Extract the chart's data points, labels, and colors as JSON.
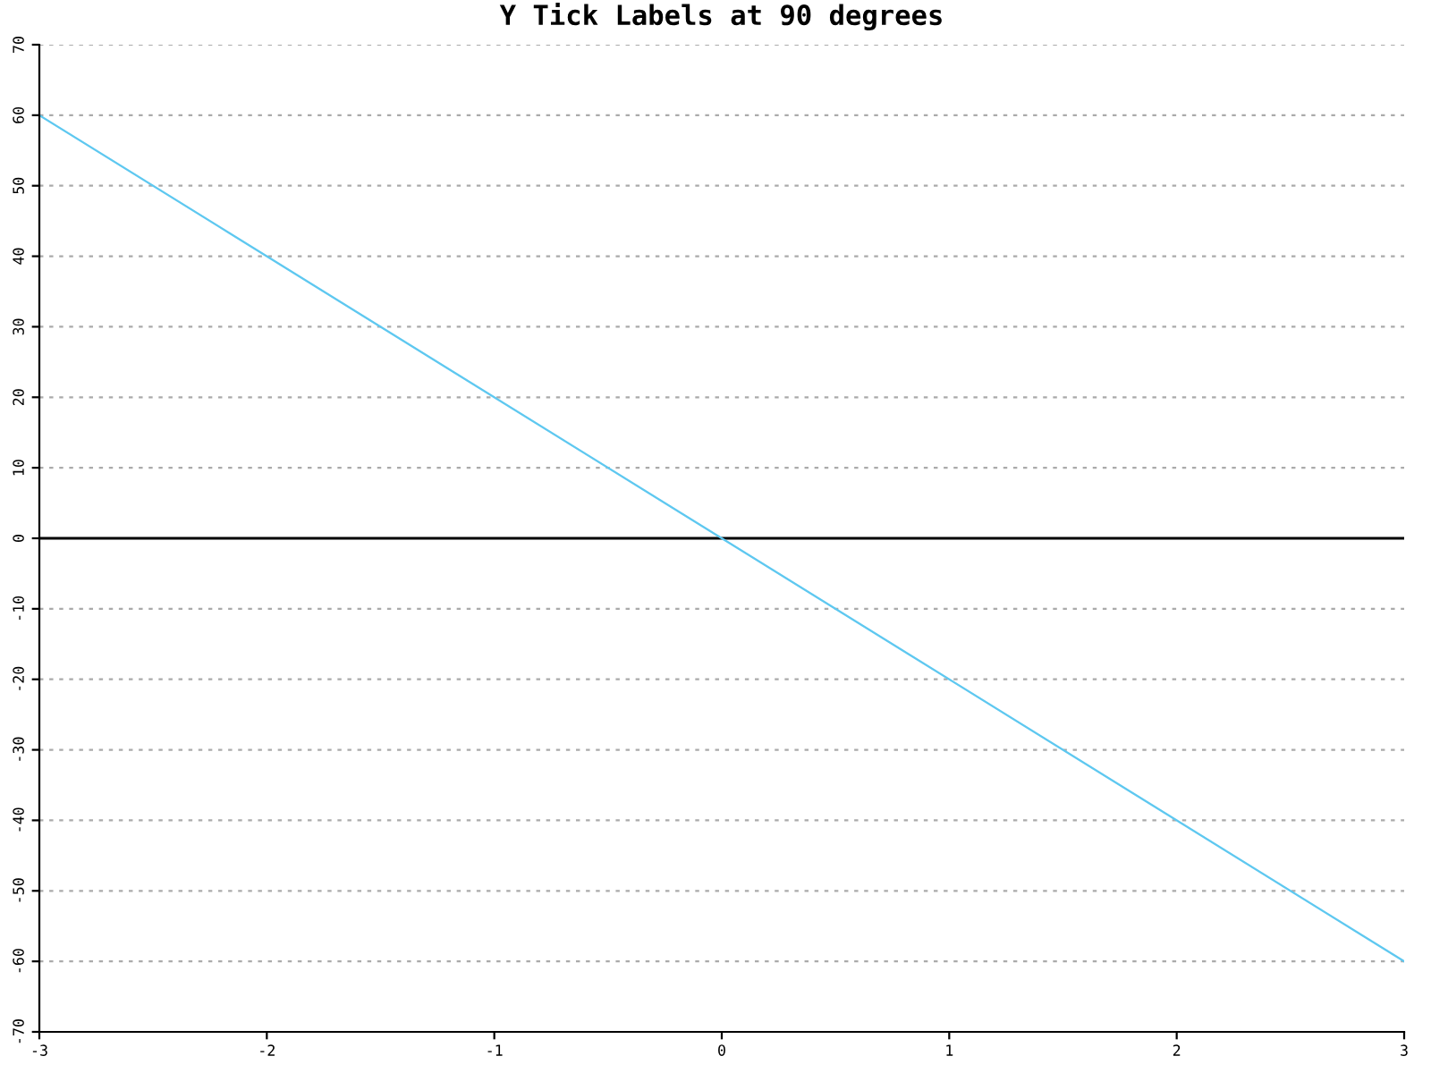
{
  "chart_data": {
    "type": "line",
    "title": "Y Tick Labels at 90 degrees",
    "x": [
      -3,
      0,
      3
    ],
    "series": [
      {
        "color": "#5ec8f0",
        "values": [
          60,
          0,
          -60
        ]
      }
    ],
    "xlim": [
      -3,
      3
    ],
    "xticks": [
      -3,
      -2,
      -1,
      0,
      1,
      2,
      3
    ],
    "ylim": [
      -70,
      70
    ],
    "yticks": [
      -70,
      -60,
      -50,
      -40,
      -30,
      -20,
      -10,
      0,
      10,
      20,
      30,
      40,
      50,
      60,
      70
    ],
    "grid": "y",
    "ref_lines": [
      {
        "axis": "y",
        "value": 0,
        "color": "#000000"
      }
    ]
  }
}
